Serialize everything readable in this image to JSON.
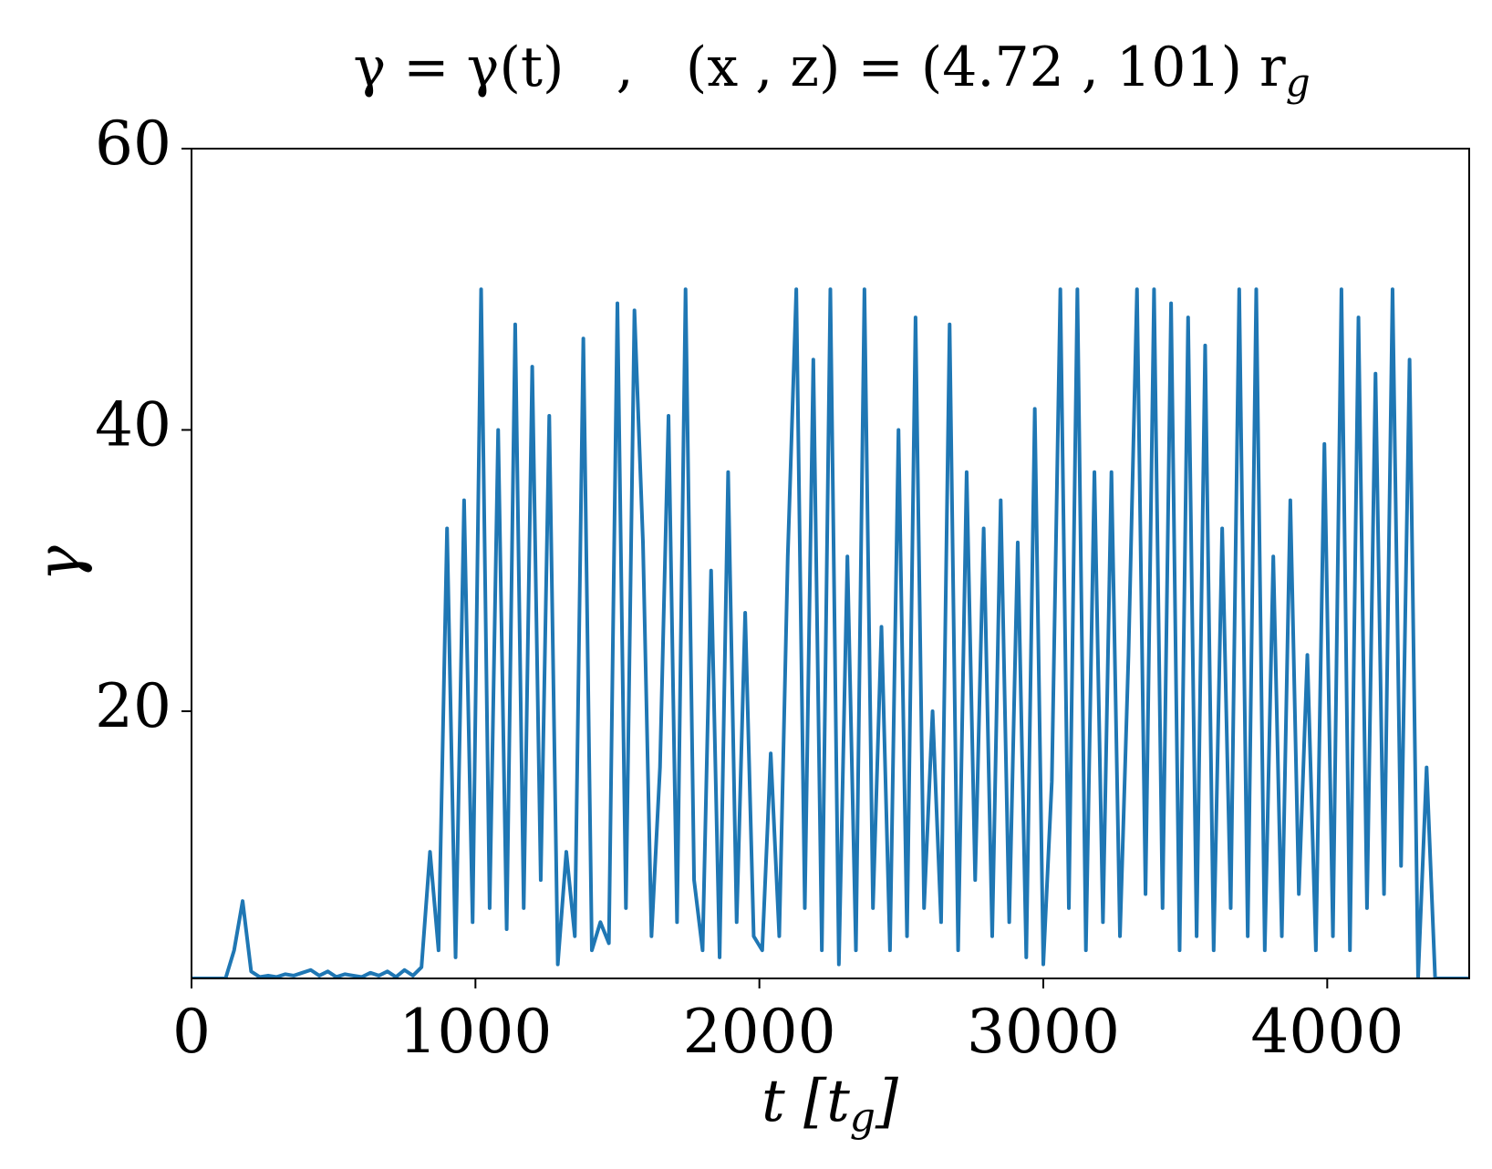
{
  "chart_data": {
    "type": "line",
    "title": "γ = γ(t)   ,   (x , z) = (4.72 , 101) r",
    "title_subscript": "g",
    "x_label": [
      "t [t",
      "g",
      "]"
    ],
    "y_label": "γ",
    "x": [
      0,
      30,
      60,
      90,
      120,
      150,
      180,
      210,
      240,
      270,
      300,
      330,
      360,
      390,
      420,
      450,
      480,
      510,
      540,
      570,
      600,
      630,
      660,
      690,
      720,
      750,
      780,
      810,
      840,
      870,
      900,
      930,
      960,
      990,
      1020,
      1050,
      1080,
      1110,
      1140,
      1170,
      1200,
      1230,
      1260,
      1290,
      1320,
      1350,
      1380,
      1410,
      1440,
      1470,
      1500,
      1530,
      1560,
      1590,
      1620,
      1650,
      1680,
      1710,
      1740,
      1770,
      1800,
      1830,
      1860,
      1890,
      1920,
      1950,
      1980,
      2010,
      2040,
      2070,
      2100,
      2130,
      2160,
      2190,
      2220,
      2250,
      2280,
      2310,
      2340,
      2370,
      2400,
      2430,
      2460,
      2490,
      2520,
      2550,
      2580,
      2610,
      2640,
      2670,
      2700,
      2730,
      2760,
      2790,
      2820,
      2850,
      2880,
      2910,
      2940,
      2970,
      3000,
      3030,
      3060,
      3090,
      3120,
      3150,
      3180,
      3210,
      3240,
      3270,
      3300,
      3330,
      3360,
      3390,
      3420,
      3450,
      3480,
      3510,
      3540,
      3570,
      3600,
      3630,
      3660,
      3690,
      3720,
      3750,
      3780,
      3810,
      3840,
      3870,
      3900,
      3930,
      3960,
      3990,
      4020,
      4050,
      4080,
      4110,
      4140,
      4170,
      4200,
      4230,
      4260,
      4290,
      4320,
      4350,
      4380,
      4410,
      4440,
      4470,
      4500
    ],
    "values": [
      1,
      1,
      1,
      1,
      1,
      3,
      6.5,
      1.5,
      1.1,
      1.2,
      1.1,
      1.3,
      1.2,
      1.4,
      1.6,
      1.2,
      1.5,
      1.1,
      1.3,
      1.2,
      1.1,
      1.4,
      1.2,
      1.5,
      1.1,
      1.6,
      1.2,
      1.8,
      10,
      3,
      33,
      2.5,
      35,
      5,
      50,
      6,
      40,
      4.5,
      47.5,
      6,
      44.5,
      8,
      41,
      2,
      10,
      4,
      46.5,
      3,
      5,
      3.5,
      49,
      6,
      48.5,
      32,
      4,
      16,
      41,
      5,
      50,
      8,
      3,
      30,
      2.5,
      37,
      5,
      27,
      4,
      3,
      17,
      4,
      31,
      50,
      6,
      45,
      3,
      50,
      2,
      31,
      3,
      50,
      6,
      26,
      3,
      40,
      4,
      48,
      6,
      20,
      5,
      47.5,
      3,
      37,
      8,
      33,
      4,
      35,
      5,
      32,
      2.5,
      41.5,
      2,
      15,
      50,
      6,
      50,
      3,
      37,
      5,
      37,
      4,
      24,
      50,
      7,
      50,
      6,
      49,
      3,
      48,
      4,
      46,
      3,
      33,
      6,
      50,
      4,
      50,
      3,
      31,
      4,
      35,
      7,
      24,
      3,
      39,
      4,
      50,
      3,
      48,
      6,
      44,
      7,
      50,
      9,
      45,
      1,
      16,
      1,
      1,
      1,
      1,
      1
    ],
    "color": "#1f77b4",
    "xlim": [
      0,
      4500
    ],
    "xticks": [
      0,
      1000,
      2000,
      3000,
      4000
    ],
    "ylim": [
      1,
      60
    ],
    "yticks": [
      20,
      40,
      60
    ]
  }
}
